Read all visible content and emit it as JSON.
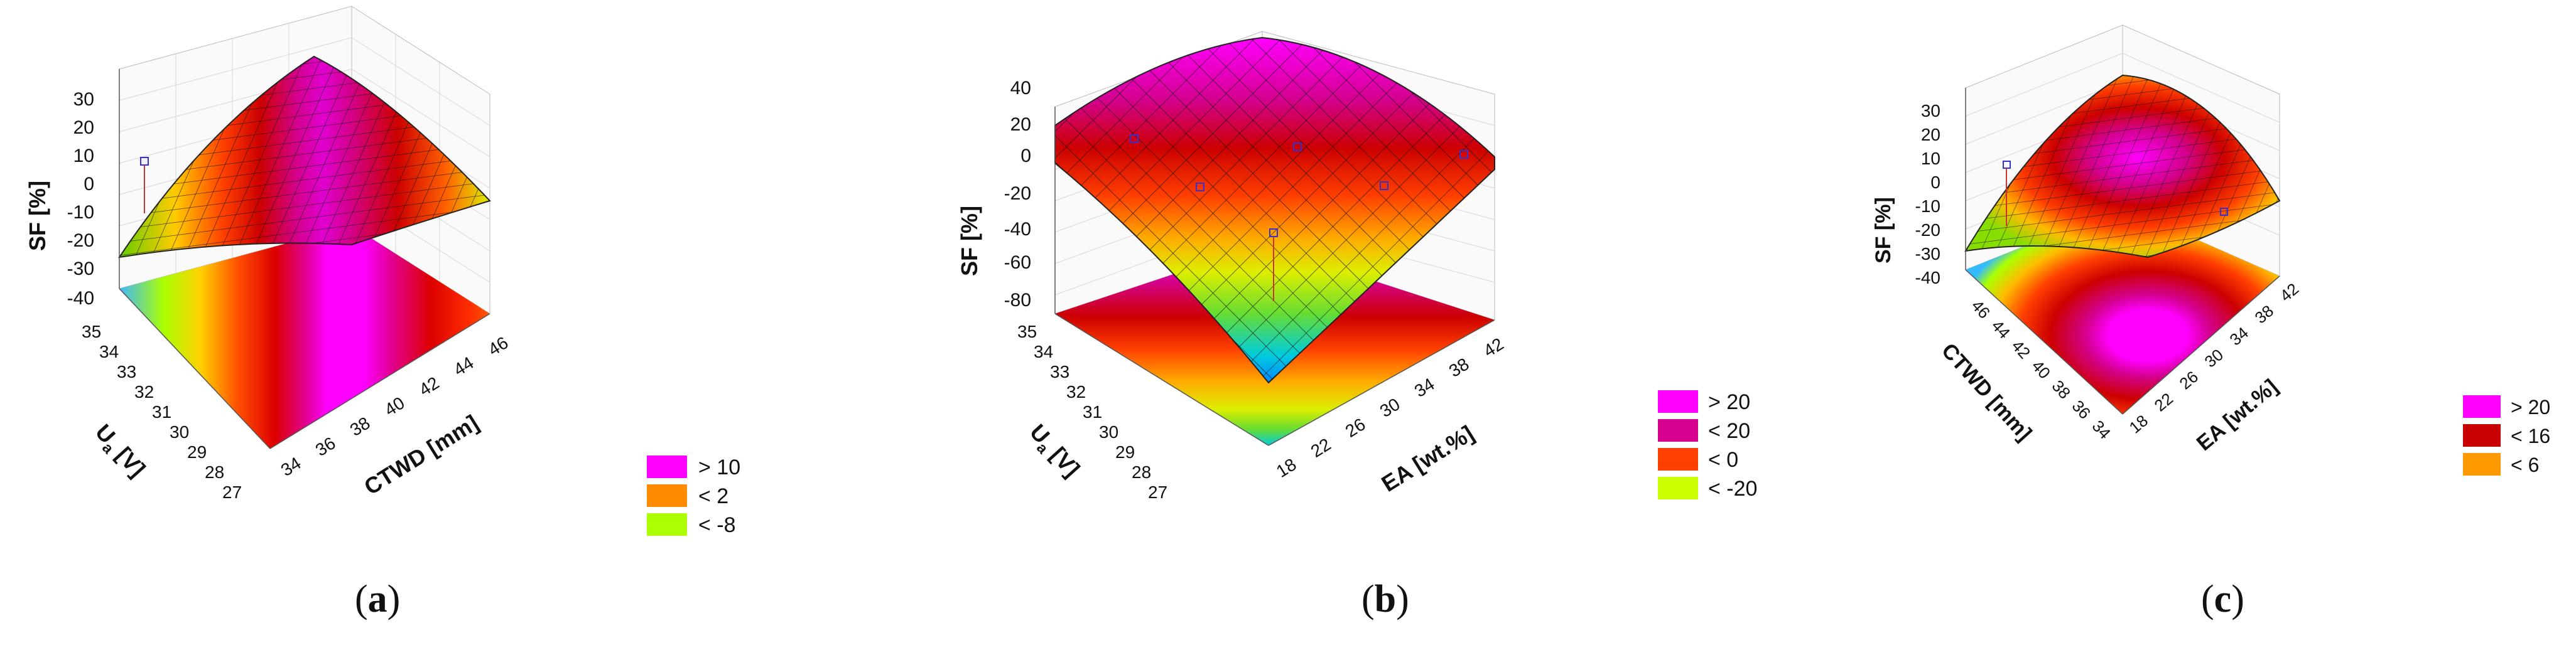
{
  "panels": [
    {
      "label": "a",
      "zlabel": "SF [%]",
      "xlabel": "Ua [V]",
      "xlabel_main": "U",
      "xlabel_sub": "a",
      "xlabel_unit": " [V]",
      "ylabel": "CTWD [mm]",
      "z_ticks": [
        "30",
        "20",
        "10",
        "0",
        "-10",
        "-20",
        "-30",
        "-40"
      ],
      "x_ticks": [
        "35",
        "34",
        "33",
        "32",
        "31",
        "30",
        "29",
        "28",
        "27"
      ],
      "y_ticks": [
        "34",
        "36",
        "38",
        "40",
        "42",
        "44",
        "46"
      ],
      "legend": [
        {
          "label": "> 10",
          "color": "#ff00ff"
        },
        {
          "label": "< 2",
          "color": "#ff8c00"
        },
        {
          "label": "< -8",
          "color": "#aaff00"
        }
      ]
    },
    {
      "label": "b",
      "zlabel": "SF [%]",
      "xlabel": "Ua [V]",
      "xlabel_main": "U",
      "xlabel_sub": "a",
      "xlabel_unit": " [V]",
      "ylabel": "EA [wt.%]",
      "z_ticks": [
        "40",
        "20",
        "0",
        "-20",
        "-40",
        "-60",
        "-80"
      ],
      "x_ticks": [
        "35",
        "34",
        "33",
        "32",
        "31",
        "30",
        "29",
        "28",
        "27"
      ],
      "y_ticks": [
        "18",
        "22",
        "26",
        "30",
        "34",
        "38",
        "42"
      ],
      "legend": [
        {
          "label": "> 20",
          "color": "#ff00ff"
        },
        {
          "label": "< 20",
          "color": "#d4008e"
        },
        {
          "label": "< 0",
          "color": "#ff4000"
        },
        {
          "label": "< -20",
          "color": "#ccff00"
        }
      ]
    },
    {
      "label": "c",
      "zlabel": "SF [%]",
      "xlabel": "CTWD [mm]",
      "ylabel": "EA [wt.%]",
      "z_ticks": [
        "30",
        "20",
        "10",
        "0",
        "-10",
        "-20",
        "-30",
        "-40"
      ],
      "x_ticks": [
        "46",
        "44",
        "42",
        "40",
        "38",
        "36",
        "34"
      ],
      "y_ticks": [
        "18",
        "22",
        "26",
        "30",
        "34",
        "38",
        "42"
      ],
      "legend": [
        {
          "label": "> 20",
          "color": "#ff00ff"
        },
        {
          "label": "< 16",
          "color": "#c80000"
        },
        {
          "label": "< 6",
          "color": "#ff9900"
        }
      ]
    }
  ],
  "chart_data": [
    {
      "type": "surface",
      "panel": "a",
      "z_axis": "SF [%]",
      "x_axis": "Ua [V]",
      "y_axis": "CTWD [mm]",
      "zlim": [
        -40,
        30
      ],
      "xlim": [
        27,
        35
      ],
      "ylim": [
        34,
        46
      ],
      "legend": [
        "> 10",
        "< 2",
        "< -8"
      ]
    },
    {
      "type": "surface",
      "panel": "b",
      "z_axis": "SF [%]",
      "x_axis": "Ua [V]",
      "y_axis": "EA [wt.%]",
      "zlim": [
        -80,
        40
      ],
      "xlim": [
        27,
        35
      ],
      "ylim": [
        18,
        42
      ],
      "legend": [
        "> 20",
        "< 20",
        "< 0",
        "< -20"
      ]
    },
    {
      "type": "surface",
      "panel": "c",
      "z_axis": "SF [%]",
      "x_axis": "CTWD [mm]",
      "y_axis": "EA [wt.%]",
      "zlim": [
        -40,
        30
      ],
      "xlim": [
        34,
        46
      ],
      "ylim": [
        18,
        42
      ],
      "legend": [
        "> 20",
        "< 16",
        "< 6"
      ]
    }
  ]
}
